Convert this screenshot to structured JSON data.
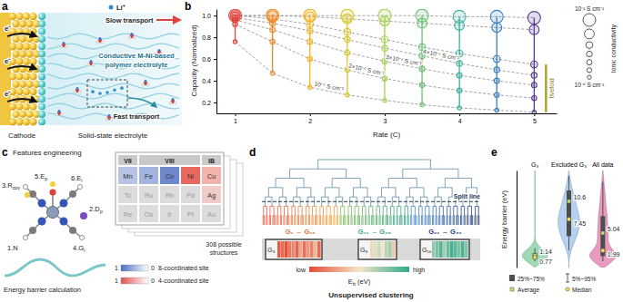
{
  "panels": {
    "a": {
      "label": "a",
      "electrons": [
        "e⁻",
        "e⁻",
        "e⁻"
      ],
      "ion": "Li⁺",
      "slow_transport": "Slow transport",
      "electrolyte_label": [
        "Conductive M-Ni-based",
        "polymer electrolyte"
      ],
      "fast_transport": "Fast transport",
      "cathode": "Cathode",
      "electrolyte": "Solid-state electrolyte"
    },
    "c": {
      "label": "c",
      "title": "Features engineering",
      "features": [
        {
          "text": "1.N"
        },
        {
          "text": "2.D",
          "sub": "p"
        },
        {
          "text": "3.R",
          "sub": "cov"
        },
        {
          "text": "4.G",
          "sub": "i"
        },
        {
          "text": "5.E",
          "sub": "p"
        },
        {
          "text": "6.E",
          "sub": "i"
        }
      ],
      "curve_label": "Energy barrier calculation",
      "groups": [
        "VII",
        "VIII",
        "IB"
      ],
      "elements": [
        [
          "Mn",
          "Fe",
          "Co",
          "Ni",
          "Cu"
        ],
        [
          "Tc",
          "Ru",
          "Rh",
          "Pd",
          "Ag"
        ],
        [
          "Re",
          "Os",
          "Ir",
          "Pt",
          "Au"
        ]
      ],
      "colorbars": [
        {
          "range": [
            1,
            0
          ],
          "label": "8-coordinated site"
        },
        {
          "range": [
            1,
            0
          ],
          "label": "4-coordinated site"
        }
      ],
      "structures": [
        "308 possible",
        "structures"
      ]
    },
    "d": {
      "label": "d",
      "split_label": "Split line",
      "groups": [
        "G₁ → G₁₀",
        "G₁₁ → G₂₀",
        "G₂₁ → G₃₁"
      ],
      "strip": [
        {
          "label": "G₃",
          "values": [
            0.05,
            0.1,
            0.02,
            0.15,
            0.2,
            0.08,
            0.3,
            0.12,
            0.25,
            0.18,
            0.35,
            0.1
          ]
        },
        {
          "label": "G₈",
          "values": [
            0.45,
            0.55,
            0.6,
            0.5,
            0.65,
            0.7,
            0.4
          ]
        },
        {
          "label": "G₁₆",
          "values": [
            0.75,
            0.8,
            0.9,
            0.7,
            0.85,
            0.95,
            0.88,
            0.8,
            0.92,
            0.78
          ]
        }
      ],
      "colorbar": {
        "range": [
          0,
          1
        ],
        "low": "low",
        "high": "high",
        "title": {
          "text": "E",
          "sub": "b",
          "after": " (eV)"
        }
      },
      "caption": "Unsupervised clustering"
    }
  },
  "chart_data": [
    {
      "label": "b",
      "type": "scatter",
      "x_label": "Rate (C)",
      "y_label": "Capacity (Normalized)",
      "x": [
        1,
        1.5,
        2,
        2.5,
        3,
        3.5,
        4,
        4.5,
        5
      ],
      "xlim": [
        0.75,
        5.3
      ],
      "xticks": [
        1,
        2,
        3,
        4,
        5
      ],
      "ylim": [
        0.1,
        1.06
      ],
      "yticks": [
        0.2,
        0.4,
        0.6,
        0.8,
        {
          "value": 1,
          "label": "1.0"
        }
      ],
      "colors": [
        "#e0423c",
        "#f08a24",
        "#f2b41f",
        "#d8c82a",
        "#a6cf55",
        "#6cbf73",
        "#3fae9f",
        "#3b7fbf",
        "#5a3d8f"
      ],
      "line_style": "dashed",
      "series": [
        {
          "name": "10⁻⁴ S cm⁻¹",
          "conductivity": 0.0001,
          "values": [
            0.76,
            0.47,
            0.34,
            0.27,
            0.22,
            0.18,
            0.15,
            0.13,
            0.11
          ]
        },
        {
          "name": "2×10⁻⁴ S cm⁻¹",
          "conductivity": 0.0002,
          "values": [
            0.92,
            0.76,
            0.6,
            0.5,
            0.42,
            0.36,
            0.31,
            0.27,
            0.24
          ]
        },
        {
          "name": "3×10⁻⁴ S cm⁻¹",
          "conductivity": 0.0003,
          "values": [
            0.96,
            0.87,
            0.76,
            0.66,
            0.58,
            0.51,
            0.45,
            0.4,
            0.36
          ]
        },
        {
          "name": "4×10⁻⁴ S cm⁻¹",
          "conductivity": 0.0004,
          "values": [
            0.98,
            0.93,
            0.86,
            0.78,
            0.7,
            0.63,
            0.56,
            0.5,
            0.45
          ]
        },
        {
          "conductivity": 0.001,
          "values": [
            1,
            0.97,
            0.92,
            0.85,
            0.78,
            0.71,
            0.65,
            0.6,
            0.55
          ]
        },
        {
          "conductivity": 0.01,
          "values": [
            1,
            1,
            0.99,
            0.97,
            0.95,
            0.93,
            0.91,
            0.89,
            0.87
          ]
        },
        {
          "conductivity": 0.1,
          "values": [
            1,
            1,
            1,
            1,
            1,
            1,
            0.99,
            0.99,
            0.98
          ]
        }
      ],
      "size_legend": {
        "title": "Ionic conductivity",
        "labels": [
          "10⁻¹ S cm⁻¹",
          "10⁻⁴ S cm⁻¹"
        ]
      },
      "annotations": [
        "fivefold"
      ]
    },
    {
      "label": "e",
      "type": "violin",
      "categories": [
        "G₃",
        "Excluded G₃",
        "All data"
      ],
      "y_label": "Energy barrier (eV)",
      "ylim": [
        -1,
        16
      ],
      "tick_labels": "x",
      "colors": [
        "#8fd3a8",
        "#a9c8ec",
        "#e48ab4"
      ],
      "density_y": [
        -1,
        0,
        1,
        2,
        3,
        4,
        5,
        6,
        7,
        8,
        9,
        10,
        11,
        12,
        13,
        14,
        15,
        16
      ],
      "density": [
        [
          0,
          0.5,
          1.0,
          0.6,
          0.15,
          0,
          0,
          0,
          0,
          0,
          0,
          0,
          0,
          0,
          0,
          0,
          0,
          0
        ],
        [
          0,
          0,
          0.05,
          0.15,
          0.3,
          0.45,
          0.6,
          0.7,
          0.75,
          0.7,
          0.6,
          0.5,
          0.4,
          0.3,
          0.2,
          0.12,
          0.06,
          0
        ],
        [
          0.1,
          0.6,
          1.0,
          0.7,
          0.4,
          0.35,
          0.35,
          0.35,
          0.3,
          0.3,
          0.25,
          0.2,
          0.18,
          0.15,
          0.1,
          0.07,
          0.04,
          0
        ]
      ],
      "p5": [
        0.1,
        2,
        0.1
      ],
      "q25": [
        0.5,
        4.5,
        1
      ],
      "q75": [
        1.5,
        12.5,
        8
      ],
      "p95": [
        2.4,
        15,
        14
      ],
      "average": [
        1.14,
        10.6,
        5.04
      ],
      "median": [
        0.77,
        7.45,
        1.99
      ],
      "data_labels": true,
      "legend": "bottom",
      "legend_entries": [
        "25%~75%",
        "5%~95%",
        "Average",
        "Median"
      ]
    }
  ]
}
